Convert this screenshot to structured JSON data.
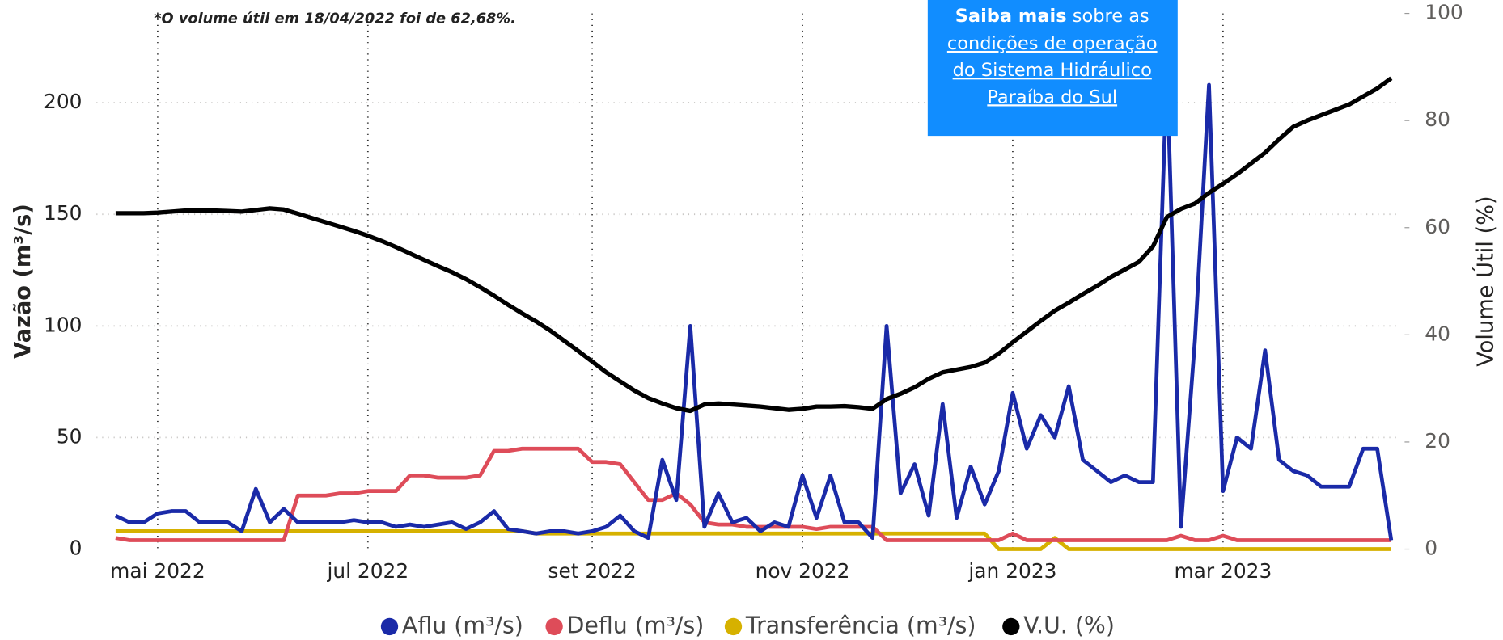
{
  "chart_data": {
    "type": "line",
    "annotation": "*O volume útil em 18/04/2022 foi de 62,68%.",
    "ylabel": "Vazão (m³/s)",
    "y2label": "Volume Útil (%)",
    "ylim": [
      0,
      240
    ],
    "yticks": [
      0,
      50,
      100,
      150,
      200
    ],
    "y2lim": [
      0,
      100
    ],
    "y2ticks": [
      0,
      20,
      40,
      60,
      80,
      100
    ],
    "grid": true,
    "legend": "bottom",
    "categories": [
      null,
      null,
      null,
      "mai 2022",
      null,
      null,
      null,
      null,
      null,
      null,
      null,
      null,
      null,
      null,
      null,
      null,
      null,
      null,
      "jul 2022",
      null,
      null,
      null,
      null,
      null,
      null,
      null,
      null,
      null,
      null,
      null,
      null,
      null,
      null,
      null,
      "set 2022",
      null,
      null,
      null,
      null,
      null,
      null,
      null,
      null,
      null,
      null,
      null,
      null,
      null,
      null,
      "nov 2022",
      null,
      null,
      null,
      null,
      null,
      null,
      null,
      null,
      null,
      null,
      null,
      null,
      null,
      null,
      "jan 2023",
      null,
      null,
      null,
      null,
      null,
      null,
      null,
      null,
      null,
      null,
      null,
      null,
      null,
      null,
      "mar 2023",
      null,
      null,
      null,
      null,
      null,
      null,
      null,
      null,
      null,
      null,
      null,
      null
    ],
    "series": [
      {
        "name": "Aflu (m³/s)",
        "color": "#1a2aa8",
        "values": [
          15,
          12,
          12,
          16,
          17,
          17,
          12,
          12,
          12,
          8,
          27,
          12,
          18,
          12,
          12,
          12,
          12,
          13,
          12,
          12,
          10,
          11,
          10,
          11,
          12,
          9,
          12,
          17,
          9,
          8,
          7,
          8,
          8,
          7,
          8,
          10,
          15,
          8,
          5,
          40,
          22,
          100,
          10,
          25,
          12,
          14,
          8,
          12,
          10,
          33,
          14,
          33,
          12,
          12,
          5,
          100,
          25,
          38,
          15,
          65,
          14,
          37,
          20,
          35,
          70,
          45,
          60,
          50,
          73,
          40,
          35,
          30,
          33,
          30,
          30,
          215,
          10,
          94,
          208,
          26,
          50,
          45,
          89,
          40,
          35,
          33,
          28,
          28,
          28,
          45,
          45,
          4
        ]
      },
      {
        "name": "Deflu (m³/s)",
        "color": "#de4c59",
        "values": [
          5,
          4,
          4,
          4,
          4,
          4,
          4,
          4,
          4,
          4,
          4,
          4,
          4,
          24,
          24,
          24,
          25,
          25,
          26,
          26,
          26,
          33,
          33,
          32,
          32,
          32,
          33,
          44,
          44,
          45,
          45,
          45,
          45,
          45,
          39,
          39,
          38,
          30,
          22,
          22,
          25,
          20,
          12,
          11,
          11,
          10,
          10,
          10,
          10,
          10,
          9,
          10,
          10,
          10,
          10,
          4,
          4,
          4,
          4,
          4,
          4,
          4,
          4,
          4,
          7,
          4,
          4,
          4,
          4,
          4,
          4,
          4,
          4,
          4,
          4,
          4,
          6,
          4,
          4,
          6,
          4,
          4,
          4,
          4,
          4,
          4,
          4,
          4,
          4,
          4,
          4,
          4
        ]
      },
      {
        "name": "Transferência (m³/s)",
        "color": "#d6b100",
        "values": [
          8,
          8,
          8,
          8,
          8,
          8,
          8,
          8,
          8,
          8,
          8,
          8,
          8,
          8,
          8,
          8,
          8,
          8,
          8,
          8,
          8,
          8,
          8,
          8,
          8,
          8,
          8,
          8,
          8,
          8,
          7,
          7,
          7,
          7,
          7,
          7,
          7,
          7,
          7,
          7,
          7,
          7,
          7,
          7,
          7,
          7,
          7,
          7,
          7,
          7,
          7,
          7,
          7,
          7,
          7,
          7,
          7,
          7,
          7,
          7,
          7,
          7,
          7,
          0,
          0,
          0,
          0,
          5,
          0,
          0,
          0,
          0,
          0,
          0,
          0,
          0,
          0,
          0,
          0,
          0,
          0,
          0,
          0,
          0,
          0,
          0,
          0,
          0,
          0,
          0,
          0,
          0
        ]
      },
      {
        "name": "V.U. (%)",
        "color": "#000000",
        "axis": "y2",
        "values": [
          62.7,
          62.7,
          62.7,
          62.8,
          63.0,
          63.2,
          63.2,
          63.2,
          63.1,
          63.0,
          63.3,
          63.6,
          63.4,
          62.6,
          61.8,
          61.0,
          60.2,
          59.4,
          58.5,
          57.5,
          56.4,
          55.2,
          54.0,
          52.8,
          51.7,
          50.4,
          48.9,
          47.3,
          45.6,
          44.0,
          42.5,
          40.8,
          38.9,
          37.0,
          35.0,
          33.0,
          31.3,
          29.6,
          28.2,
          27.2,
          26.3,
          25.8,
          27.0,
          27.2,
          27.0,
          26.8,
          26.6,
          26.3,
          26.0,
          26.2,
          26.6,
          26.6,
          26.7,
          26.5,
          26.2,
          28.0,
          29.0,
          30.2,
          31.8,
          33.0,
          33.5,
          34.0,
          34.8,
          36.5,
          38.6,
          40.6,
          42.6,
          44.5,
          46.0,
          47.6,
          49.1,
          50.8,
          52.2,
          53.6,
          56.5,
          62.0,
          63.5,
          64.5,
          66.5,
          68.2,
          70.0,
          72.0,
          74.0,
          76.5,
          78.8,
          80.0,
          81.0,
          82.0,
          83.0,
          84.5,
          86.0,
          87.9
        ]
      }
    ]
  },
  "link_box": {
    "bold": "Saiba mais",
    "text": " sobre as",
    "lines": [
      "condições de operação",
      "do Sistema Hidráulico",
      "Paraíba do Sul"
    ]
  }
}
